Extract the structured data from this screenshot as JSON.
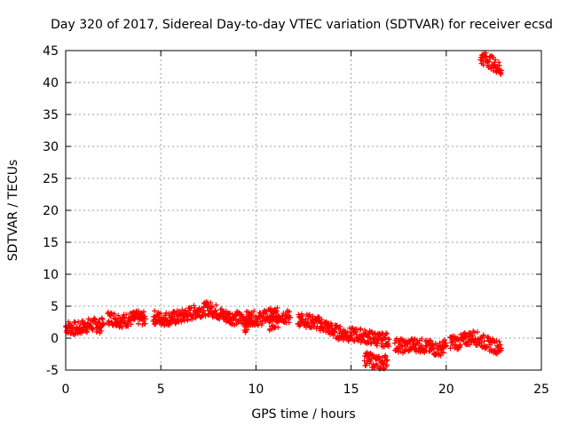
{
  "chart_data": {
    "type": "scatter",
    "title": "Day 320 of 2017, Sidereal Day-to-day VTEC variation (SDTVAR) for receiver ecsd",
    "xlabel": "GPS time / hours",
    "ylabel": "SDTVAR / TECUs",
    "xlim": [
      0,
      25
    ],
    "ylim": [
      -5,
      45
    ],
    "xticks": [
      "0",
      "5",
      "10",
      "15",
      "20",
      "25"
    ],
    "yticks": [
      "-5",
      "0",
      "5",
      "10",
      "15",
      "20",
      "25",
      "30",
      "35",
      "40",
      "45"
    ],
    "grid": true,
    "marker": "plus",
    "color": "#ff0000",
    "series": [
      {
        "name": "SDTVAR",
        "segments": [
          [
            [
              0.0,
              1.8
            ],
            [
              0.3,
              1.6
            ],
            [
              0.6,
              1.4
            ],
            [
              0.9,
              1.8
            ],
            [
              1.2,
              2.0
            ],
            [
              1.5,
              2.1
            ],
            [
              1.8,
              1.9
            ],
            [
              2.0,
              2.2
            ]
          ],
          [
            [
              2.2,
              3.2
            ],
            [
              2.6,
              3.0
            ],
            [
              3.0,
              2.7
            ],
            [
              3.4,
              3.0
            ],
            [
              3.8,
              3.2
            ],
            [
              4.2,
              3.0
            ]
          ],
          [
            [
              4.6,
              3.3
            ],
            [
              5.0,
              3.0
            ],
            [
              5.5,
              3.1
            ],
            [
              6.0,
              3.3
            ],
            [
              6.5,
              3.8
            ],
            [
              7.0,
              4.3
            ],
            [
              7.5,
              4.7
            ],
            [
              7.9,
              4.2
            ],
            [
              8.3,
              3.5
            ],
            [
              8.8,
              3.2
            ],
            [
              9.3,
              3.0
            ],
            [
              9.8,
              3.2
            ],
            [
              10.2,
              3.0
            ],
            [
              10.6,
              3.5
            ],
            [
              11.0,
              3.7
            ],
            [
              11.4,
              3.5
            ],
            [
              11.8,
              3.2
            ]
          ],
          [
            [
              9.4,
              1.8
            ],
            [
              9.8,
              2.4
            ]
          ],
          [
            [
              10.7,
              2.3
            ],
            [
              11.2,
              2.6
            ]
          ],
          [
            [
              12.2,
              3.0
            ],
            [
              12.6,
              2.8
            ],
            [
              13.0,
              2.5
            ],
            [
              13.4,
              2.2
            ],
            [
              13.8,
              1.6
            ],
            [
              14.2,
              1.0
            ],
            [
              14.6,
              0.7
            ],
            [
              15.0,
              0.5
            ],
            [
              15.4,
              0.5
            ],
            [
              15.8,
              0.2
            ],
            [
              16.2,
              0.0
            ],
            [
              16.6,
              -0.3
            ],
            [
              17.0,
              -0.2
            ]
          ],
          [
            [
              15.7,
              -3.2
            ],
            [
              16.2,
              -3.6
            ],
            [
              16.6,
              -4.0
            ],
            [
              16.9,
              -3.4
            ]
          ],
          [
            [
              17.3,
              -1.0
            ],
            [
              17.8,
              -1.3
            ],
            [
              18.3,
              -1.0
            ],
            [
              18.8,
              -1.2
            ],
            [
              19.2,
              -1.5
            ],
            [
              19.6,
              -1.8
            ],
            [
              20.0,
              -1.2
            ]
          ],
          [
            [
              20.2,
              -0.5
            ],
            [
              20.6,
              -0.7
            ],
            [
              21.0,
              -0.2
            ],
            [
              21.4,
              0.2
            ],
            [
              21.8,
              -0.3
            ],
            [
              22.2,
              -0.9
            ],
            [
              22.6,
              -1.3
            ],
            [
              22.9,
              -1.6
            ]
          ],
          [
            [
              21.8,
              44.0
            ],
            [
              22.2,
              43.5
            ],
            [
              22.6,
              42.7
            ],
            [
              22.9,
              41.9
            ]
          ]
        ]
      }
    ]
  }
}
